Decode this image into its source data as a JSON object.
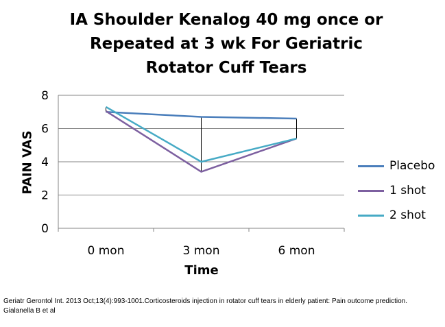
{
  "chart_data": {
    "type": "line",
    "title_lines": [
      "IA Shoulder Kenalog 40 mg once or",
      "Repeated at 3 wk For Geriatric",
      "Rotator Cuff Tears"
    ],
    "xlabel": "Time",
    "ylabel": "PAIN VAS",
    "categories": [
      "0 mon",
      "3 mon",
      "6 mon"
    ],
    "ylim": [
      0,
      8
    ],
    "yticks": [
      0,
      2,
      4,
      6,
      8
    ],
    "grid": true,
    "legend_position": "right",
    "series": [
      {
        "name": "Placebo",
        "values": [
          7.0,
          6.7,
          6.6
        ],
        "color": "#4a7ebb"
      },
      {
        "name": "1 shot",
        "values": [
          7.05,
          3.4,
          5.4
        ],
        "color": "#7d60a0"
      },
      {
        "name": "2 shot",
        "values": [
          7.3,
          4.0,
          5.4
        ],
        "color": "#46aac5"
      }
    ],
    "high_low_lines": true
  },
  "source": "Geriatr Gerontol Int. 2013 Oct;13(4):993-1001.Corticosteroids injection in rotator cuff tears in elderly patient: Pain outcome  prediction. Gialanella B et al"
}
